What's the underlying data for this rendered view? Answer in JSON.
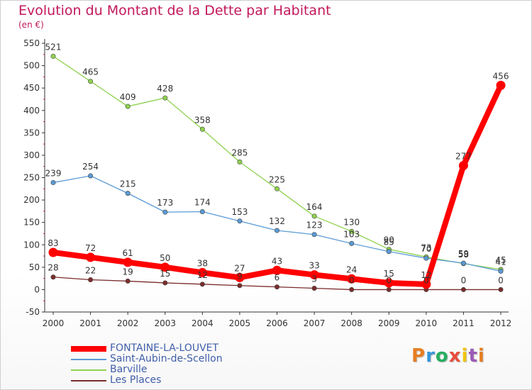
{
  "chart_data": {
    "type": "line",
    "title": "Evolution du Montant de la Dette par Habitant",
    "subtitle": "(en €)",
    "x": [
      "2000",
      "2001",
      "2002",
      "2003",
      "2004",
      "2005",
      "2006",
      "2007",
      "2008",
      "2009",
      "2010",
      "2011",
      "2012"
    ],
    "ylim": [
      -50,
      550
    ],
    "yticks": [
      -50,
      0,
      50,
      100,
      150,
      200,
      250,
      300,
      350,
      400,
      450,
      500,
      550
    ],
    "grid": false,
    "legend_position": "bottom-left",
    "series": [
      {
        "name": "FONTAINE-LA-LOUVET",
        "color": "#ff0000",
        "width": "heavy",
        "values": [
          83,
          72,
          61,
          50,
          38,
          27,
          43,
          33,
          24,
          15,
          12,
          277,
          456
        ],
        "labels": [
          "83",
          "72",
          "61",
          "50",
          "38",
          "27",
          "43",
          "33",
          "24",
          "15",
          "12",
          "277",
          "456"
        ]
      },
      {
        "name": "Saint-Aubin-de-Scellon",
        "color": "#5b9bd5",
        "width": "thin",
        "values": [
          239,
          254,
          215,
          173,
          174,
          153,
          132,
          123,
          103,
          85,
          70,
          59,
          41
        ],
        "labels": [
          "239",
          "254",
          "215",
          "173",
          "174",
          "153",
          "132",
          "123",
          "103",
          "85",
          "70",
          "59",
          "41"
        ]
      },
      {
        "name": "Barville",
        "color": "#8fd14f",
        "width": "thin",
        "values": [
          521,
          465,
          409,
          428,
          358,
          285,
          225,
          164,
          130,
          90,
          73,
          58,
          45
        ],
        "labels": [
          "521",
          "465",
          "409",
          "428",
          "358",
          "285",
          "225",
          "164",
          "130",
          "90",
          "73",
          "58",
          "45"
        ]
      },
      {
        "name": "Les Places",
        "color": "#7b2c2c",
        "width": "thin",
        "values": [
          28,
          22,
          19,
          15,
          12,
          9,
          6,
          3,
          0,
          0,
          0,
          0,
          0
        ],
        "labels": [
          "28",
          "22",
          "19",
          "15",
          "12",
          "9",
          "6",
          "3",
          "0",
          "0",
          "0",
          "0",
          "0"
        ]
      }
    ]
  },
  "logo": {
    "letters": [
      "P",
      "r",
      "o",
      "x",
      "i",
      "t",
      "i"
    ],
    "colors": [
      "#e67e22",
      "#3498db",
      "#27ae60",
      "#e74c3c",
      "#f1c40f",
      "#9b59b6",
      "#e67e22"
    ]
  }
}
